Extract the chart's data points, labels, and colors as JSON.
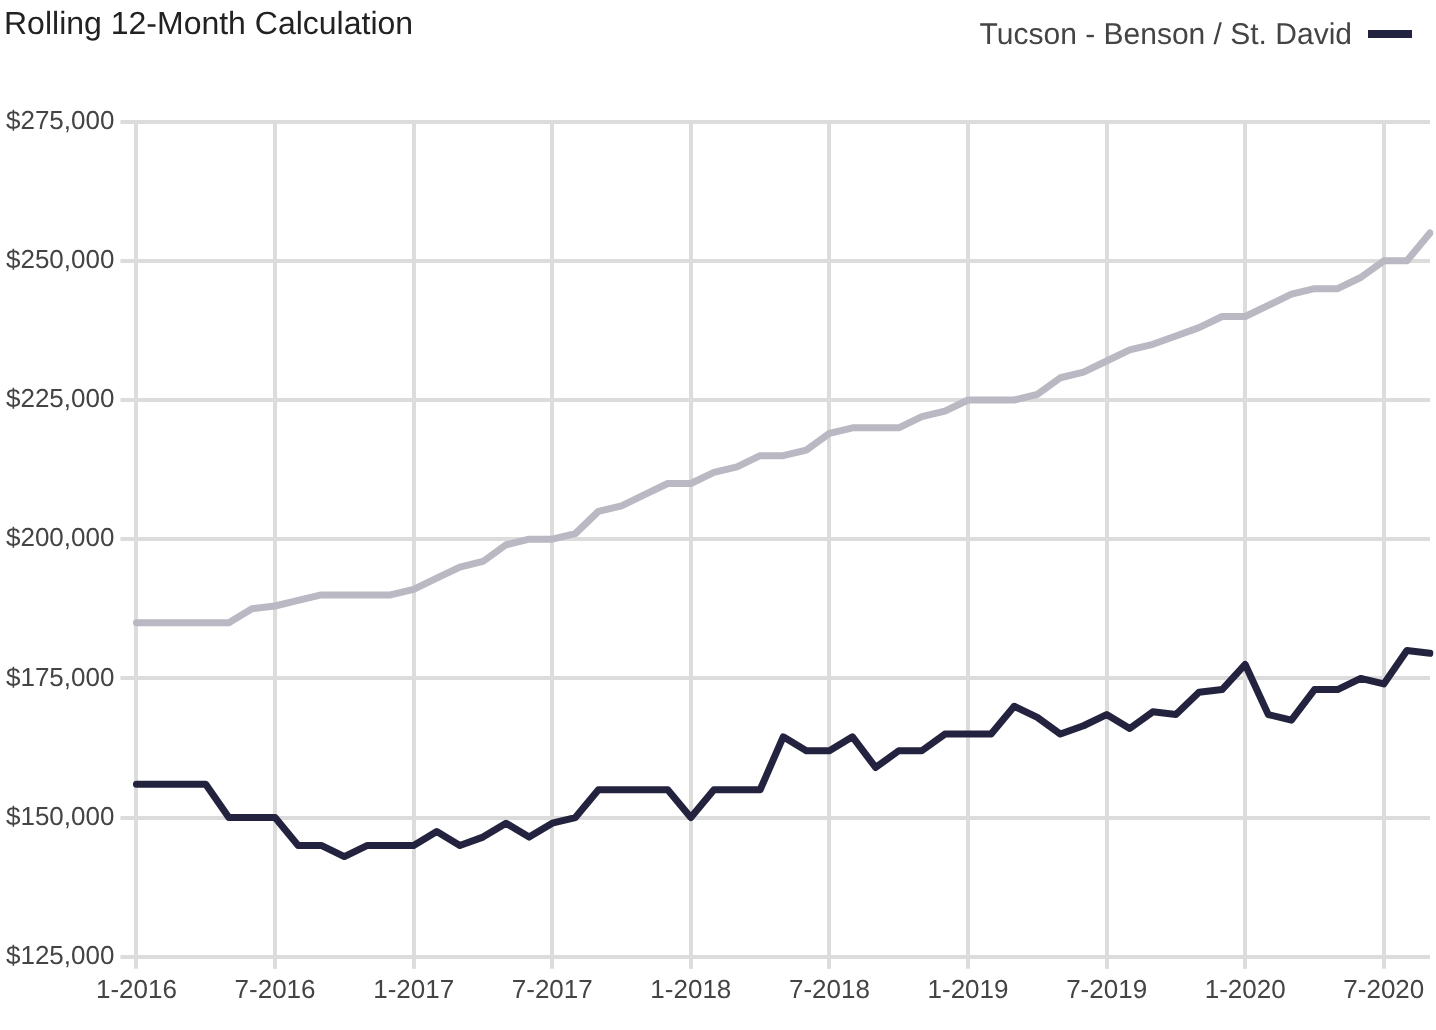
{
  "chart_data": {
    "type": "line",
    "title": "Rolling 12-Month Calculation",
    "categories": [
      "1-2016",
      null,
      null,
      null,
      null,
      null,
      "7-2016",
      null,
      null,
      null,
      null,
      null,
      "1-2017",
      null,
      null,
      null,
      null,
      null,
      "7-2017",
      null,
      null,
      null,
      null,
      null,
      "1-2018",
      null,
      null,
      null,
      null,
      null,
      "7-2018",
      null,
      null,
      null,
      null,
      null,
      "1-2019",
      null,
      null,
      null,
      null,
      null,
      "7-2019",
      null,
      null,
      null,
      null,
      null,
      "1-2020",
      null,
      null,
      null,
      null,
      null,
      "7-2020",
      null,
      null
    ],
    "series": [
      {
        "color": "#b9b8c3",
        "values": [
          185000,
          185000,
          185000,
          185000,
          185000,
          187500,
          188000,
          189000,
          190000,
          190000,
          190000,
          190000,
          191000,
          193000,
          195000,
          196000,
          199000,
          200000,
          200000,
          201000,
          205000,
          206000,
          208000,
          210000,
          210000,
          212000,
          213000,
          215000,
          215000,
          216000,
          219000,
          220000,
          220000,
          220000,
          222000,
          223000,
          225000,
          225000,
          225000,
          226000,
          229000,
          230000,
          232000,
          234000,
          235000,
          236500,
          238000,
          240000,
          240000,
          242000,
          244000,
          245000,
          245000,
          247000,
          250000,
          250000,
          255000
        ]
      },
      {
        "name": "Tucson - Benson / St. David",
        "color": "#23233f",
        "values": [
          156000,
          156000,
          156000,
          156000,
          150000,
          150000,
          150000,
          145000,
          145000,
          143000,
          145000,
          145000,
          145000,
          147500,
          145000,
          146500,
          149000,
          146500,
          149000,
          150000,
          155000,
          155000,
          155000,
          155000,
          150000,
          155000,
          155000,
          155000,
          164500,
          162000,
          162000,
          164500,
          159000,
          162000,
          162000,
          165000,
          165000,
          165000,
          170000,
          168000,
          165000,
          166500,
          168500,
          166000,
          169000,
          168500,
          172500,
          173000,
          177500,
          168500,
          167500,
          173000,
          173000,
          175000,
          174000,
          180000,
          179500
        ]
      }
    ],
    "ylim": [
      125000,
      275000
    ],
    "yticks": [
      {
        "value": 125000,
        "label": "$125,000"
      },
      {
        "value": 150000,
        "label": "$150,000"
      },
      {
        "value": 175000,
        "label": "$175,000"
      },
      {
        "value": 200000,
        "label": "$200,000"
      },
      {
        "value": 225000,
        "label": "$225,000"
      },
      {
        "value": 250000,
        "label": "$250,000"
      },
      {
        "value": 275000,
        "label": "$275,000"
      }
    ],
    "grid": true,
    "legend": "top right",
    "marker": "none",
    "line_style": "solid"
  }
}
